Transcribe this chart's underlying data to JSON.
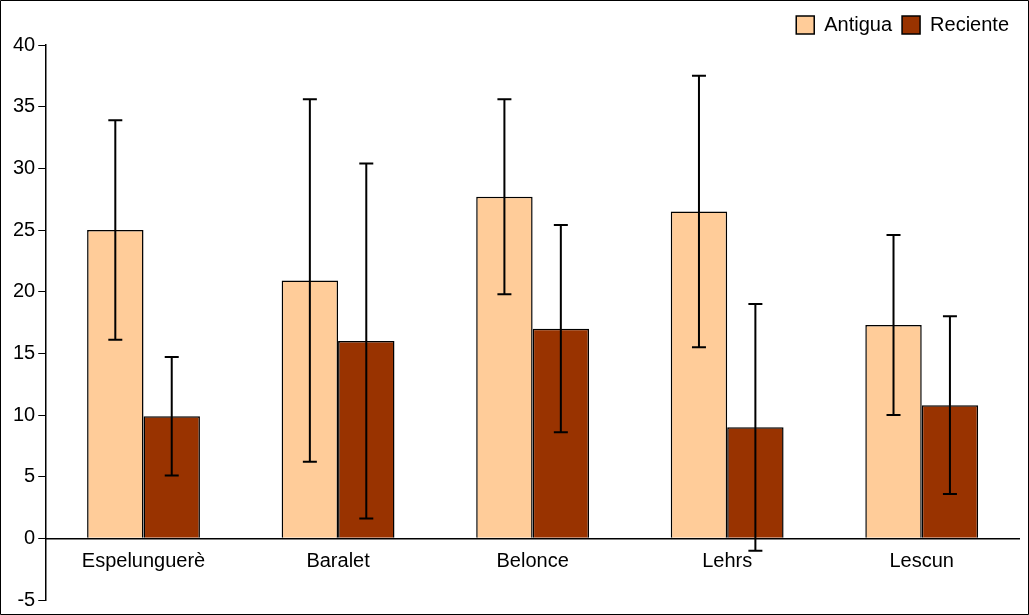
{
  "chart_data": {
    "type": "bar",
    "categories": [
      "Espelunguerè",
      "Baralet",
      "Belonce",
      "Lehrs",
      "Lescun"
    ],
    "series": [
      {
        "name": "Antigua",
        "color": "#ffcc99",
        "values": [
          25,
          20.9,
          27.7,
          26.5,
          17.3
        ],
        "errors": [
          8.9,
          14.7,
          7.9,
          11,
          7.3
        ]
      },
      {
        "name": "Reciente",
        "color": "#993300",
        "values": [
          9.9,
          16,
          17,
          9,
          10.8
        ],
        "errors": [
          4.8,
          14.4,
          8.4,
          10,
          7.2
        ]
      }
    ],
    "ylim": [
      -5,
      40
    ],
    "yticks": [
      -5,
      0,
      5,
      10,
      15,
      20,
      25,
      30,
      35,
      40
    ],
    "grid": false,
    "legend": "top right"
  }
}
